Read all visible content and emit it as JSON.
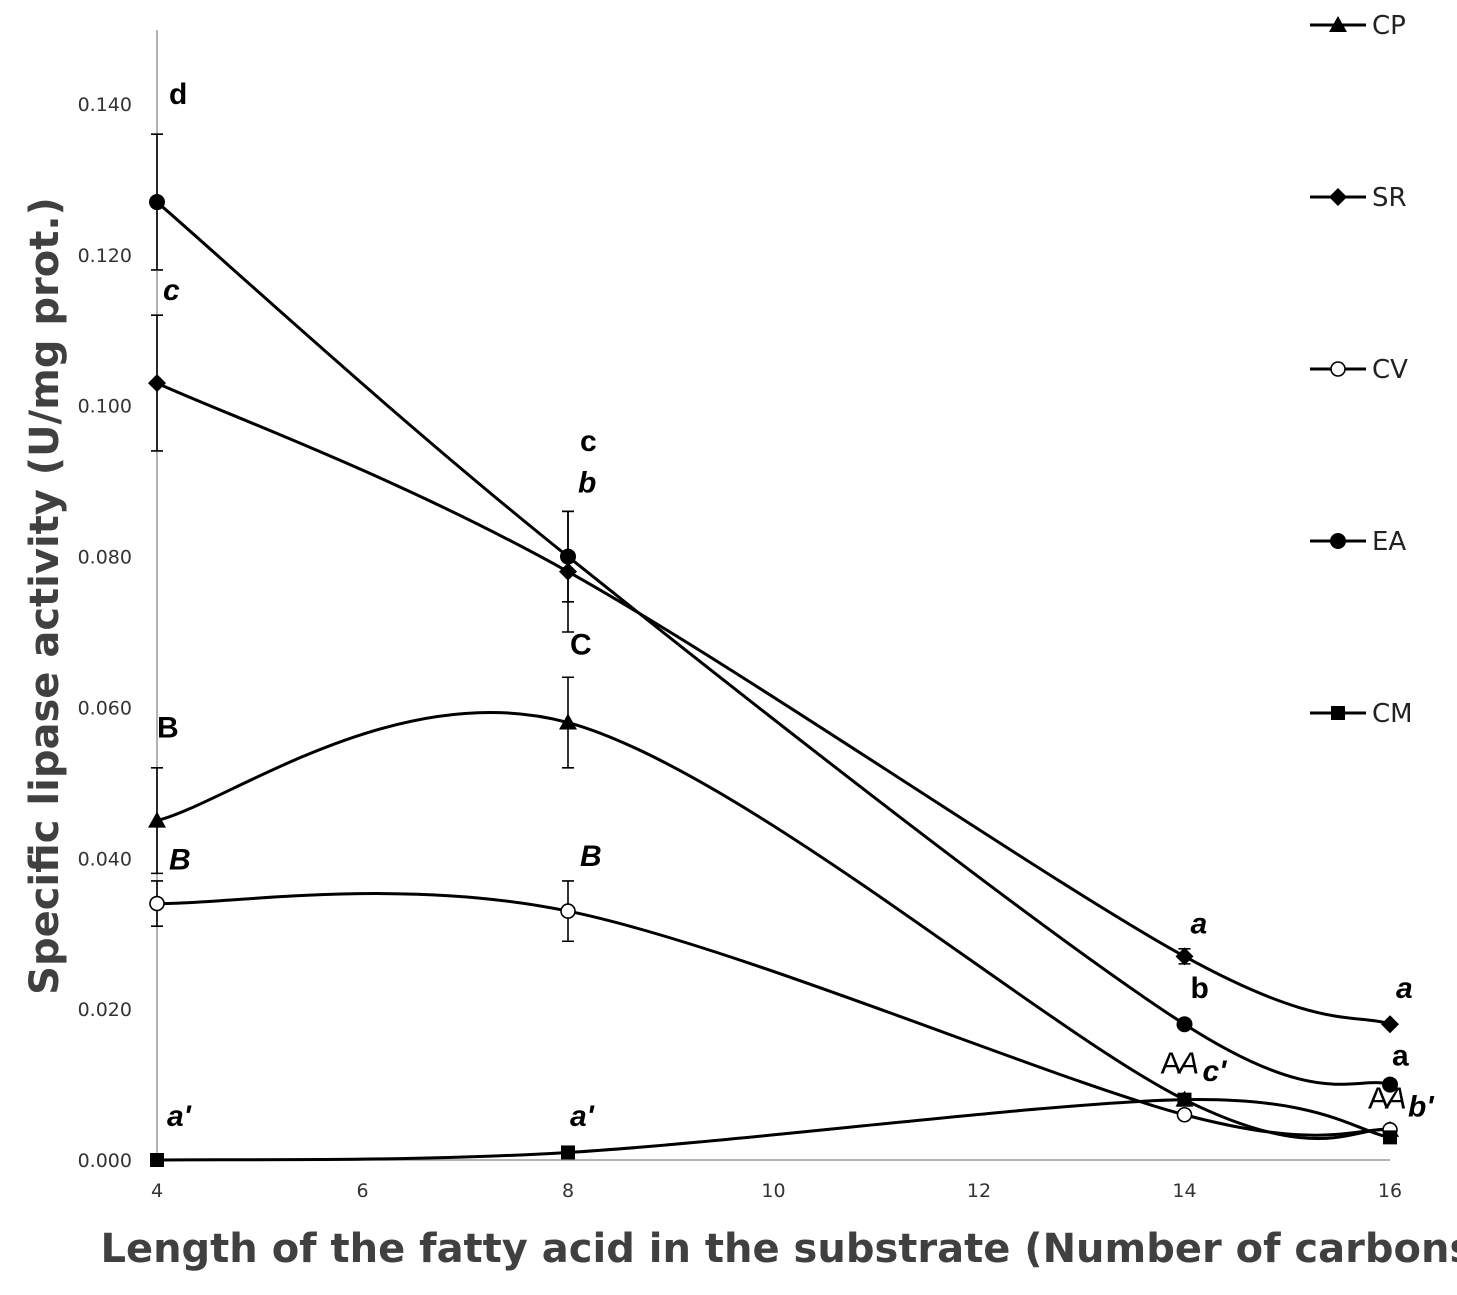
{
  "chart_data": {
    "type": "line",
    "title": "",
    "xlabel": "Length of the fatty acid in the substrate (Number of carbons)",
    "ylabel": "Specific lipase activity (U/mg prot.)",
    "xlim": [
      4,
      16
    ],
    "ylim": [
      0,
      0.14
    ],
    "x_ticks": [
      "4",
      "6",
      "8",
      "10",
      "12",
      "14",
      "16"
    ],
    "y_ticks": [
      "0.000",
      "0.020",
      "0.040",
      "0.060",
      "0.080",
      "0.100",
      "0.120",
      "0.140"
    ],
    "x": [
      4,
      8,
      14,
      16
    ],
    "legend_position": "right",
    "series": [
      {
        "name": "CP",
        "marker": "triangle",
        "values": [
          0.045,
          0.058,
          0.008,
          0.004
        ],
        "errors": [
          0.007,
          0.006,
          0.0,
          0.0
        ]
      },
      {
        "name": "SR",
        "marker": "diamond",
        "values": [
          0.103,
          0.078,
          0.027,
          0.018
        ],
        "errors": [
          0.009,
          0.008,
          0.001,
          0.0
        ]
      },
      {
        "name": "CV",
        "marker": "open-circle",
        "values": [
          0.034,
          0.033,
          0.006,
          0.004
        ],
        "errors": [
          0.003,
          0.004,
          0.0,
          0.0
        ]
      },
      {
        "name": "EA",
        "marker": "circle",
        "values": [
          0.127,
          0.08,
          0.018,
          0.01
        ],
        "errors": [
          0.009,
          0.006,
          0.0,
          0.0
        ]
      },
      {
        "name": "CM",
        "marker": "square",
        "values": [
          0.0,
          0.001,
          0.008,
          0.003
        ],
        "errors": [
          0.0,
          0.0,
          0.0,
          0.0
        ]
      }
    ],
    "annotations": [
      {
        "text": "d",
        "style": "bold",
        "x": 4,
        "y": 0.14
      },
      {
        "text": "c",
        "style": "bold-italic",
        "x": 4,
        "y": 0.114
      },
      {
        "text": "B",
        "style": "bold",
        "x": 4,
        "y": 0.056
      },
      {
        "text": "B",
        "style": "bold-italic",
        "x": 4,
        "y": 0.0385
      },
      {
        "text": "a'",
        "style": "bold-italic",
        "x": 4,
        "y": 0.0045
      },
      {
        "text": "c",
        "style": "bold",
        "x": 8,
        "y": 0.094
      },
      {
        "text": "b",
        "style": "bold-italic",
        "x": 8,
        "y": 0.0885
      },
      {
        "text": "C",
        "style": "bold",
        "x": 8,
        "y": 0.067
      },
      {
        "text": "B",
        "style": "bold-italic",
        "x": 8,
        "y": 0.039
      },
      {
        "text": "a'",
        "style": "bold-italic",
        "x": 8,
        "y": 0.0045
      },
      {
        "text": "a",
        "style": "bold-italic",
        "x": 14,
        "y": 0.03
      },
      {
        "text": "b",
        "style": "bold",
        "x": 14,
        "y": 0.0215
      },
      {
        "text": "A",
        "style": "plain",
        "x": 14,
        "y": 0.0115
      },
      {
        "text": "A",
        "style": "italic",
        "x": 14,
        "y": 0.0115
      },
      {
        "text": "c'",
        "style": "bold-italic",
        "x": 14,
        "y": 0.0105
      },
      {
        "text": "a",
        "style": "bold-italic",
        "x": 16,
        "y": 0.0215
      },
      {
        "text": "a",
        "style": "bold",
        "x": 16,
        "y": 0.0125
      },
      {
        "text": "A",
        "style": "plain",
        "x": 16,
        "y": 0.0068
      },
      {
        "text": "A",
        "style": "italic",
        "x": 16,
        "y": 0.0068
      },
      {
        "text": "b'",
        "style": "bold-italic",
        "x": 16,
        "y": 0.0058
      }
    ]
  }
}
